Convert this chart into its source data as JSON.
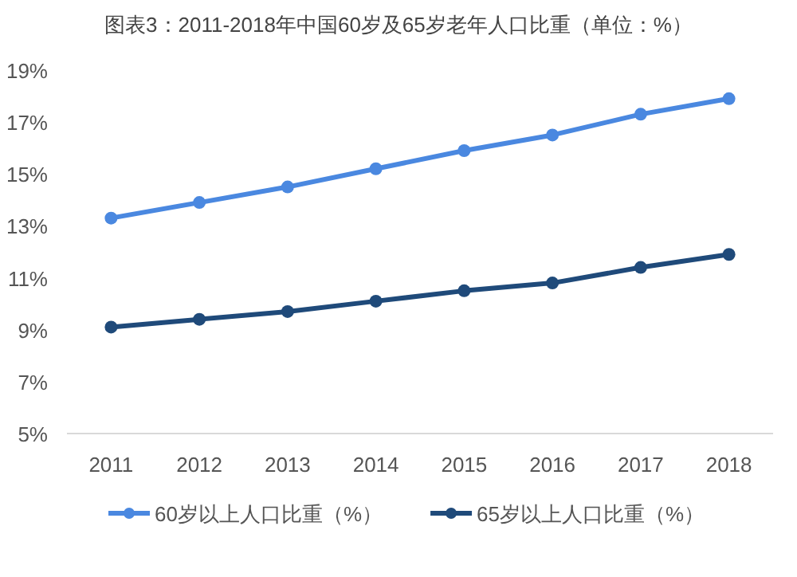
{
  "chart_data": {
    "type": "line",
    "title": "图表3：2011-2018年中国60岁及65岁老年人口比重（单位：%）",
    "categories": [
      "2011",
      "2012",
      "2013",
      "2014",
      "2015",
      "2016",
      "2017",
      "2018"
    ],
    "series": [
      {
        "name": "60岁以上人口比重（%）",
        "color": "#4a88e0",
        "values": [
          13.3,
          13.9,
          14.5,
          15.2,
          15.9,
          16.5,
          17.3,
          17.9
        ]
      },
      {
        "name": "65岁以上人口比重（%）",
        "color": "#1f4a7a",
        "values": [
          9.1,
          9.4,
          9.7,
          10.1,
          10.5,
          10.8,
          11.4,
          11.9
        ]
      }
    ],
    "ylim": [
      5,
      19
    ],
    "yticks": [
      {
        "value": 5,
        "label": "5%"
      },
      {
        "value": 7,
        "label": "7%"
      },
      {
        "value": 9,
        "label": "9%"
      },
      {
        "value": 11,
        "label": "11%"
      },
      {
        "value": 13,
        "label": "13%"
      },
      {
        "value": 15,
        "label": "15%"
      },
      {
        "value": 17,
        "label": "17%"
      },
      {
        "value": 19,
        "label": "19%"
      }
    ],
    "marker": "circle",
    "line_style": "solid",
    "legend": "bottom",
    "grid": false
  }
}
